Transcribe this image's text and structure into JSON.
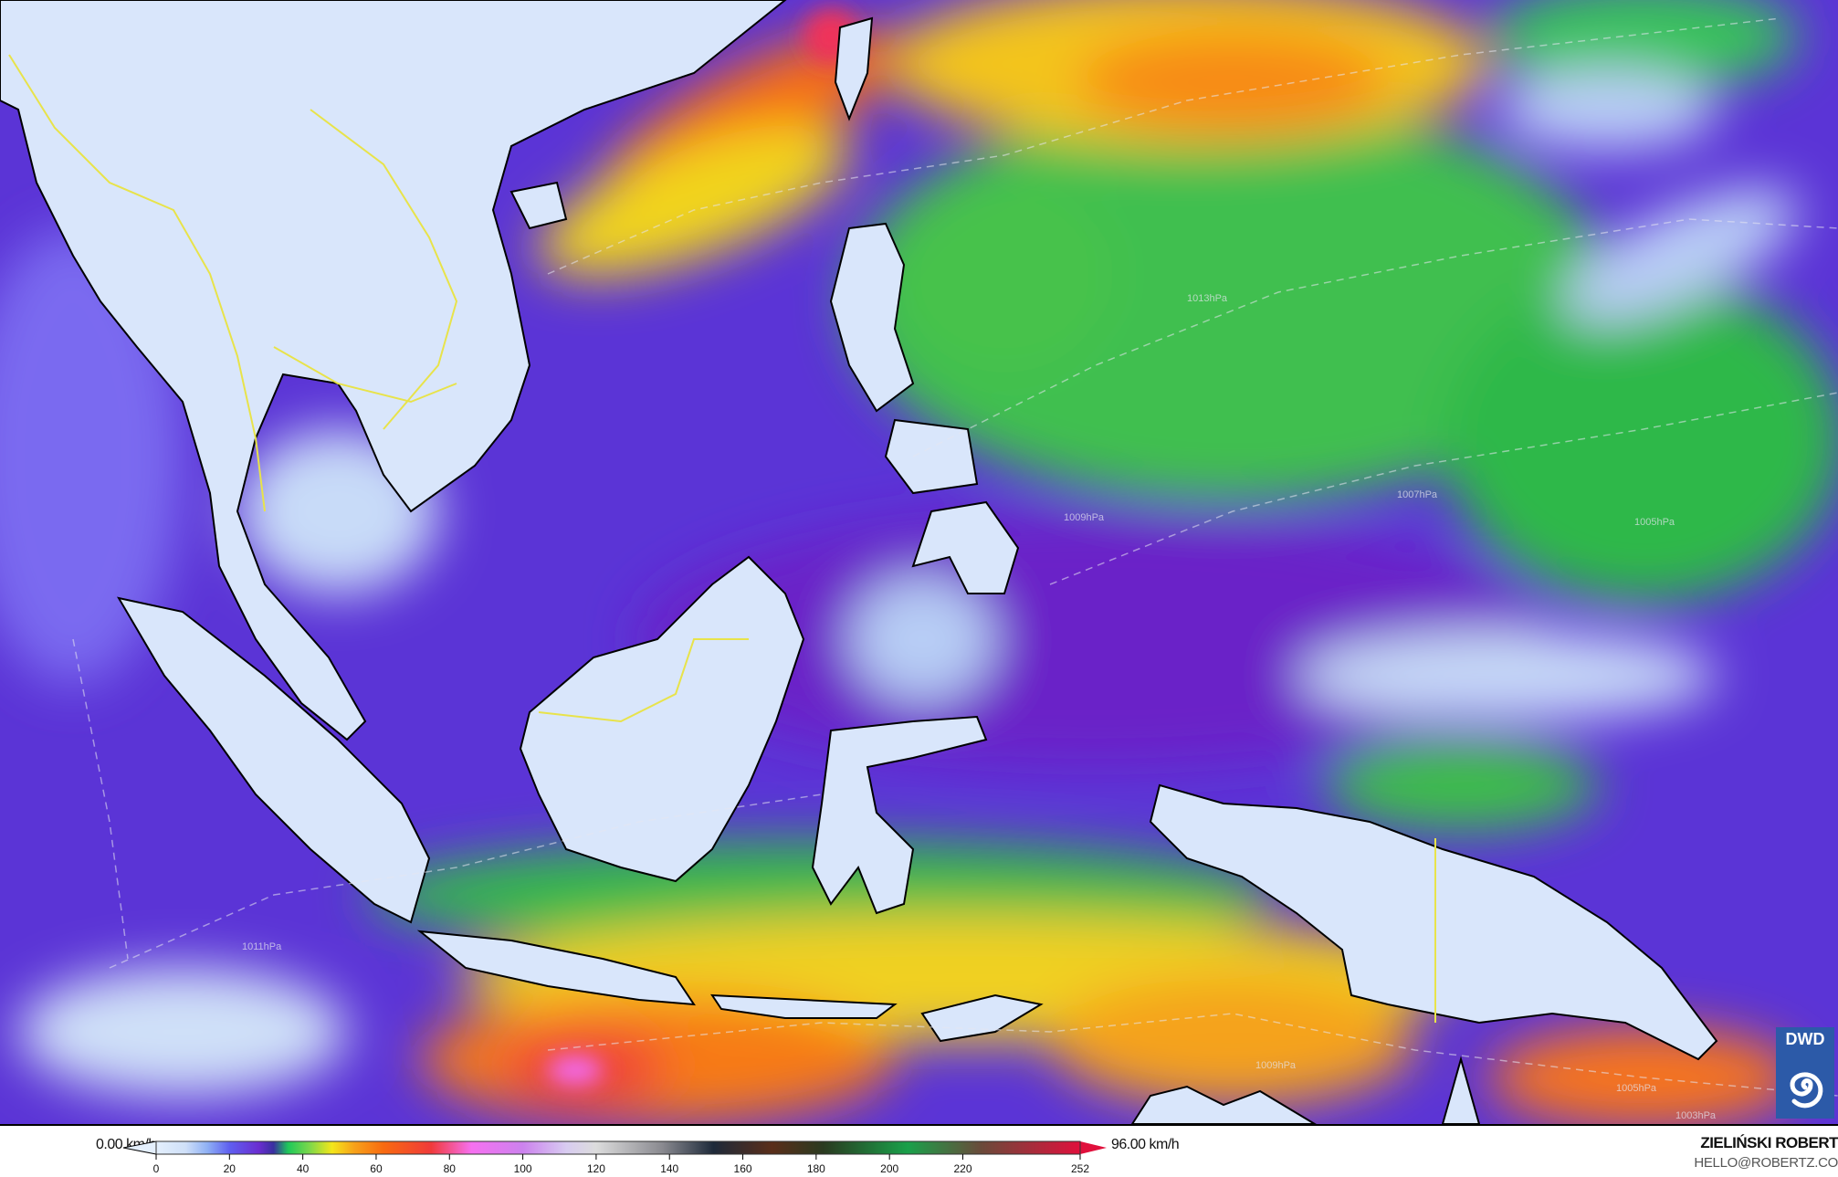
{
  "map": {
    "variable_unit": "km/h",
    "isobar_labels": [
      "1013hPa",
      "1009hPa",
      "1007hPa",
      "1005hPa",
      "1011hPa",
      "1009hPa",
      "1005hPa",
      "1003hPa"
    ],
    "colors": {
      "background_low": "#5b34d6",
      "calm": "#dce9fb",
      "light": "#a9c6f5",
      "moderate_green": "#2fb84a",
      "strong_yellow": "#f4dc1c",
      "very_strong_orange": "#f77f12",
      "extreme_red": "#ef3b3b",
      "peak_pink": "#f26bf0",
      "coastline": "#000000",
      "country_border": "#e8e34a"
    }
  },
  "legend": {
    "min_label": "0.00 km/h",
    "max_label": "96.00 km/h",
    "ticks": [
      "0",
      "20",
      "40",
      "60",
      "80",
      "100",
      "120",
      "140",
      "160",
      "180",
      "200",
      "220",
      "252"
    ],
    "tick_values": [
      0,
      20,
      40,
      60,
      80,
      100,
      120,
      140,
      160,
      180,
      200,
      220,
      252
    ],
    "color_stops": [
      {
        "v": 0,
        "c": "#e4effc"
      },
      {
        "v": 8,
        "c": "#cfe0f8"
      },
      {
        "v": 14,
        "c": "#8fb0f4"
      },
      {
        "v": 20,
        "c": "#5f5ff0"
      },
      {
        "v": 28,
        "c": "#6a2dd0"
      },
      {
        "v": 32,
        "c": "#3a2fa0"
      },
      {
        "v": 36,
        "c": "#1ec85a"
      },
      {
        "v": 42,
        "c": "#7fd84a"
      },
      {
        "v": 48,
        "c": "#f4e61a"
      },
      {
        "v": 54,
        "c": "#f7a21a"
      },
      {
        "v": 62,
        "c": "#f86a10"
      },
      {
        "v": 75,
        "c": "#f03a3a"
      },
      {
        "v": 86,
        "c": "#f670f0"
      },
      {
        "v": 100,
        "c": "#cc82ee"
      },
      {
        "v": 112,
        "c": "#d8ccf0"
      },
      {
        "v": 120,
        "c": "#dcdcdc"
      },
      {
        "v": 138,
        "c": "#8a8a90"
      },
      {
        "v": 152,
        "c": "#1e2a3a"
      },
      {
        "v": 168,
        "c": "#5a2e1a"
      },
      {
        "v": 182,
        "c": "#2a3a20"
      },
      {
        "v": 205,
        "c": "#1aa04a"
      },
      {
        "v": 225,
        "c": "#6a4a3a"
      },
      {
        "v": 252,
        "c": "#e0103c"
      }
    ]
  },
  "credits": {
    "name": "ZIELIŃSKI ROBERT",
    "email": "HELLO@ROBERTZ.CO",
    "logo_text": "DWD"
  }
}
